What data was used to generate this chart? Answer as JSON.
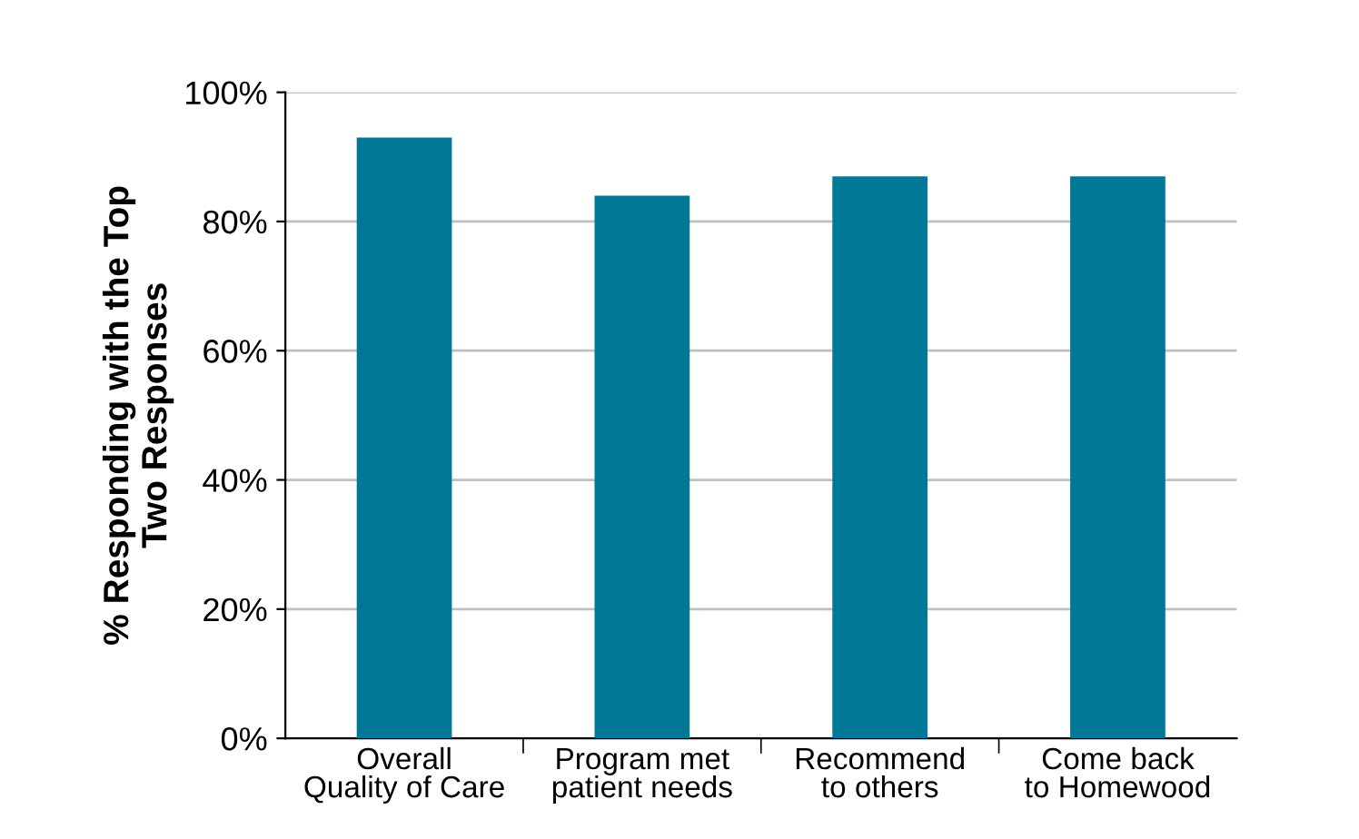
{
  "chart_data": {
    "type": "bar",
    "ylabel": "% Responding with the Top\nTwo Responses",
    "categories": [
      "Overall Quality of Care",
      "Program met patient needs",
      "Recommend to others",
      "Come back to Homewood"
    ],
    "values": [
      93,
      84,
      87,
      87
    ],
    "color": "#007896",
    "ylim": [
      0,
      100
    ],
    "yticks": [
      {
        "value": 0,
        "label": "0%"
      },
      {
        "value": 20,
        "label": "20%"
      },
      {
        "value": 40,
        "label": "40%"
      },
      {
        "value": 60,
        "label": "60%"
      },
      {
        "value": 80,
        "label": "80%"
      },
      {
        "value": 100,
        "label": "100%"
      }
    ],
    "grid": "y"
  }
}
